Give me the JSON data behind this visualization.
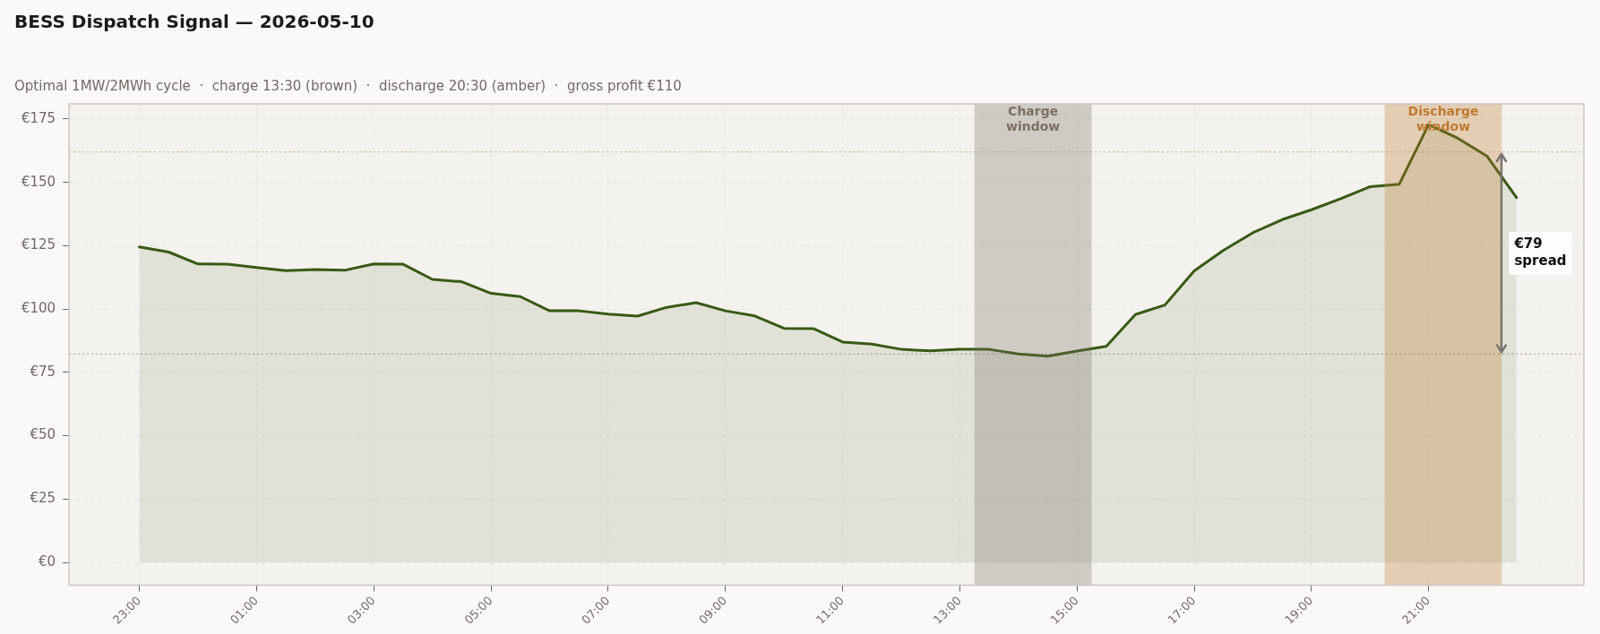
{
  "chart_data": {
    "type": "area",
    "title": "BESS Dispatch Signal — 2026-05-10",
    "subtitle": "Optimal 1MW/2MWh cycle  ·  charge 13:30 (brown)  ·  discharge 20:30 (amber)  ·  gross profit €110",
    "x": [
      "2026-05-09T23:00",
      "2026-05-09T23:30",
      "2026-05-10T00:00",
      "2026-05-10T00:30",
      "2026-05-10T01:00",
      "2026-05-10T01:30",
      "2026-05-10T02:00",
      "2026-05-10T02:30",
      "2026-05-10T03:00",
      "2026-05-10T03:30",
      "2026-05-10T04:00",
      "2026-05-10T04:30",
      "2026-05-10T05:00",
      "2026-05-10T05:30",
      "2026-05-10T06:00",
      "2026-05-10T06:30",
      "2026-05-10T07:00",
      "2026-05-10T07:30",
      "2026-05-10T08:00",
      "2026-05-10T08:30",
      "2026-05-10T09:00",
      "2026-05-10T09:30",
      "2026-05-10T10:00",
      "2026-05-10T10:30",
      "2026-05-10T11:00",
      "2026-05-10T11:30",
      "2026-05-10T12:00",
      "2026-05-10T12:30",
      "2026-05-10T13:00",
      "2026-05-10T13:30",
      "2026-05-10T14:00",
      "2026-05-10T14:30",
      "2026-05-10T15:00",
      "2026-05-10T15:30",
      "2026-05-10T16:00",
      "2026-05-10T16:30",
      "2026-05-10T17:00",
      "2026-05-10T17:30",
      "2026-05-10T18:00",
      "2026-05-10T18:30",
      "2026-05-10T19:00",
      "2026-05-10T19:30",
      "2026-05-10T20:00",
      "2026-05-10T20:30",
      "2026-05-10T21:00",
      "2026-05-10T21:30",
      "2026-05-10T22:00",
      "2026-05-10T22:30"
    ],
    "series": [
      {
        "color": "#375a14",
        "values": [
          124.5,
          122.5,
          117.8,
          117.7,
          116.4,
          115.2,
          115.6,
          115.3,
          117.8,
          117.7,
          111.7,
          110.8,
          106.2,
          104.9,
          99.3,
          99.3,
          98,
          97.2,
          100.7,
          102.5,
          99.3,
          97.3,
          92.4,
          92.3,
          87,
          86.2,
          84.1,
          83.5,
          84.1,
          84.1,
          82.3,
          81.4,
          83.4,
          85.3,
          97.9,
          101.6,
          115.1,
          123.2,
          130.1,
          135.3,
          139.2,
          143.6,
          148.3,
          149.3,
          172.8,
          167.4,
          160.3,
          144
        ]
      }
    ],
    "xlim": [
      "2026-05-09T21:48",
      "2026-05-10T23:39"
    ],
    "ylim": [
      -9,
      181
    ],
    "xticks": [
      {
        "value": "2026-05-09T23:00",
        "label": "23:00"
      },
      {
        "value": "2026-05-10T01:00",
        "label": "01:00"
      },
      {
        "value": "2026-05-10T03:00",
        "label": "03:00"
      },
      {
        "value": "2026-05-10T05:00",
        "label": "05:00"
      },
      {
        "value": "2026-05-10T07:00",
        "label": "07:00"
      },
      {
        "value": "2026-05-10T09:00",
        "label": "09:00"
      },
      {
        "value": "2026-05-10T11:00",
        "label": "11:00"
      },
      {
        "value": "2026-05-10T13:00",
        "label": "13:00"
      },
      {
        "value": "2026-05-10T15:00",
        "label": "15:00"
      },
      {
        "value": "2026-05-10T17:00",
        "label": "17:00"
      },
      {
        "value": "2026-05-10T19:00",
        "label": "19:00"
      },
      {
        "value": "2026-05-10T21:00",
        "label": "21:00"
      }
    ],
    "yticks": [
      {
        "value": 0,
        "label": "€0"
      },
      {
        "value": 25,
        "label": "€25"
      },
      {
        "value": 50,
        "label": "€50"
      },
      {
        "value": 75,
        "label": "€75"
      },
      {
        "value": 100,
        "label": "€100"
      },
      {
        "value": 125,
        "label": "€125"
      },
      {
        "value": 150,
        "label": "€150"
      },
      {
        "value": 175,
        "label": "€175"
      }
    ],
    "grid": true,
    "marker": "none",
    "line_style": "solid",
    "bands": [
      {
        "axis": "x",
        "from": "2026-05-10T13:15",
        "to": "2026-05-10T15:15",
        "label": "Charge\nwindow",
        "color": "#7d7062"
      },
      {
        "axis": "x",
        "from": "2026-05-10T20:15",
        "to": "2026-05-10T22:15",
        "label": "Discharge\nwindow",
        "color": "#c07a30"
      }
    ],
    "ref_lines": [
      {
        "axis": "y",
        "value": 162,
        "color": "#d9a070",
        "line_style": "dotted"
      },
      {
        "axis": "y",
        "value": 82.3,
        "color": "#a09a90",
        "line_style": "dotted"
      }
    ],
    "annotations": [
      {
        "text": "€79\nspread",
        "x": "2026-05-10T22:15",
        "y": 122
      }
    ]
  }
}
